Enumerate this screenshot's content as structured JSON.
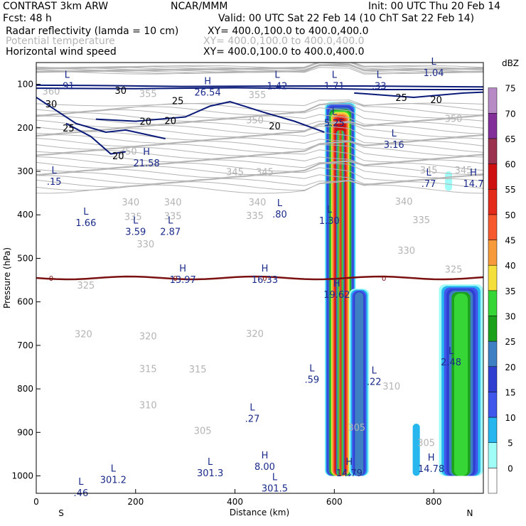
{
  "header": {
    "model": "CONTRAST  3km ARW",
    "center": "NCAR/MMM",
    "init": "Init: 00 UTC Thu 20 Feb 14",
    "fcst": "Fcst:    48 h",
    "valid": "Valid: 00 UTC Sat 22 Feb 14 (10 ChT Sat 22 Feb 14)",
    "fields": [
      {
        "name": "Radar reflectivity (lamda = 10 cm)",
        "xy": "XY= 400.0,100.0 to 400.0,400.0",
        "gray": false
      },
      {
        "name": "Potential temperature",
        "xy": "XY= 400.0,100.0 to 400.0,400.0",
        "gray": true
      },
      {
        "name": "Horizontal wind speed",
        "xy": "XY= 400.0,100.0 to 400.0,400.0",
        "gray": false
      }
    ]
  },
  "colors": {
    "wind": "#0a1a78",
    "theta": "#b4b4b4",
    "freezing": "#7a1010",
    "hl_label": "#1a2a8a"
  },
  "chart_data": {
    "type": "heatmap",
    "title": "Vertical cross-section: radar reflectivity, potential temperature, horizontal wind speed",
    "xlabel": "Distance (km)",
    "ylabel": "Pressure (hPa)",
    "xlim": [
      0,
      900
    ],
    "ylim": [
      1040,
      50
    ],
    "xticks": [
      0,
      200,
      400,
      600,
      800
    ],
    "yticks": [
      100,
      200,
      300,
      400,
      500,
      600,
      700,
      800,
      900,
      1000
    ],
    "end_labels": {
      "left": "S",
      "right": "N"
    },
    "colorbar": {
      "unit": "dBZ",
      "levels": [
        0,
        5,
        10,
        15,
        20,
        25,
        30,
        35,
        40,
        45,
        50,
        55,
        60,
        65,
        70,
        75
      ],
      "colors": [
        "#ffffff",
        "#9ffcf6",
        "#27b7ee",
        "#3f57ea",
        "#2f3fd0",
        "#3f7fc4",
        "#1ca11c",
        "#37d637",
        "#f4df3c",
        "#f69a3a",
        "#f5592d",
        "#e42a1b",
        "#cf1010",
        "#9b3350",
        "#822f9a",
        "#b789c5"
      ]
    },
    "reflectivity_cells": [
      {
        "name": "main-convective-core",
        "x_center": 612,
        "p_top": 140,
        "p_base": 1000,
        "max_dbz": 60
      },
      {
        "name": "cell-650km",
        "x_center": 650,
        "p_top": 570,
        "p_base": 1000,
        "max_dbz": 25
      },
      {
        "name": "cell-850km",
        "x_center": 855,
        "p_top": 560,
        "p_base": 1000,
        "max_dbz": 35
      },
      {
        "name": "echo-765km",
        "x_center": 765,
        "p_top": 880,
        "p_base": 1000,
        "max_dbz": 10
      },
      {
        "name": "echo-830km",
        "x_center": 830,
        "p_top": 300,
        "p_base": 345,
        "max_dbz": 5
      }
    ],
    "potential_temperature_labels": [
      {
        "x": 30,
        "p": 117,
        "v": "360"
      },
      {
        "x": 225,
        "p": 123,
        "v": "355"
      },
      {
        "x": 445,
        "p": 125,
        "v": "355"
      },
      {
        "x": 440,
        "p": 183,
        "v": "350"
      },
      {
        "x": 840,
        "p": 180,
        "v": "350"
      },
      {
        "x": 400,
        "p": 302,
        "v": "345"
      },
      {
        "x": 460,
        "p": 302,
        "v": "345"
      },
      {
        "x": 790,
        "p": 298,
        "v": "345"
      },
      {
        "x": 860,
        "p": 298,
        "v": "345"
      },
      {
        "x": 185,
        "p": 255,
        "v": "350"
      },
      {
        "x": 190,
        "p": 372,
        "v": "340"
      },
      {
        "x": 275,
        "p": 372,
        "v": "340"
      },
      {
        "x": 445,
        "p": 372,
        "v": "340"
      },
      {
        "x": 740,
        "p": 370,
        "v": "340"
      },
      {
        "x": 195,
        "p": 405,
        "v": "335"
      },
      {
        "x": 275,
        "p": 404,
        "v": "335"
      },
      {
        "x": 440,
        "p": 403,
        "v": "335"
      },
      {
        "x": 775,
        "p": 413,
        "v": "335"
      },
      {
        "x": 220,
        "p": 468,
        "v": "330"
      },
      {
        "x": 745,
        "p": 483,
        "v": "330"
      },
      {
        "x": 100,
        "p": 563,
        "v": "325"
      },
      {
        "x": 840,
        "p": 526,
        "v": "325"
      },
      {
        "x": 95,
        "p": 675,
        "v": "320"
      },
      {
        "x": 225,
        "p": 680,
        "v": "320"
      },
      {
        "x": 440,
        "p": 674,
        "v": "320"
      },
      {
        "x": 225,
        "p": 755,
        "v": "315"
      },
      {
        "x": 325,
        "p": 756,
        "v": "315"
      },
      {
        "x": 715,
        "p": 795,
        "v": "310"
      },
      {
        "x": 225,
        "p": 838,
        "v": "310"
      },
      {
        "x": 335,
        "p": 897,
        "v": "305"
      },
      {
        "x": 645,
        "p": 890,
        "v": "305"
      },
      {
        "x": 785,
        "p": 925,
        "v": "305"
      }
    ],
    "wind_speed_labels": [
      {
        "x": 170,
        "p": 114,
        "v": "30"
      },
      {
        "x": 30,
        "p": 145,
        "v": "30"
      },
      {
        "x": 285,
        "p": 137,
        "v": "25"
      },
      {
        "x": 735,
        "p": 130,
        "v": "25"
      },
      {
        "x": 805,
        "p": 135,
        "v": "20"
      },
      {
        "x": 65,
        "p": 200,
        "v": "25"
      },
      {
        "x": 220,
        "p": 185,
        "v": "20"
      },
      {
        "x": 270,
        "p": 183,
        "v": "20"
      },
      {
        "x": 480,
        "p": 195,
        "v": "20"
      },
      {
        "x": 165,
        "p": 264,
        "v": "20"
      }
    ],
    "freezing_level": {
      "label": "0",
      "p": 545
    },
    "extrema": [
      {
        "t": "L",
        "x": 62,
        "p": 85,
        "v": ".91"
      },
      {
        "t": "H",
        "x": 345,
        "p": 100,
        "v": "26.54"
      },
      {
        "t": "L",
        "x": 485,
        "p": 85,
        "v": "1.42"
      },
      {
        "t": "L",
        "x": 600,
        "p": 85,
        "v": "1.71"
      },
      {
        "t": "L",
        "x": 690,
        "p": 85,
        "v": ".33"
      },
      {
        "t": "L",
        "x": 800,
        "p": 55,
        "v": "1.04"
      },
      {
        "t": "L",
        "x": 600,
        "p": 170,
        "v": "5.25"
      },
      {
        "t": "L",
        "x": 720,
        "p": 220,
        "v": "3.16"
      },
      {
        "t": "H",
        "x": 222,
        "p": 262,
        "v": "21.58"
      },
      {
        "t": "L",
        "x": 36,
        "p": 305,
        "v": ".15"
      },
      {
        "t": "L",
        "x": 790,
        "p": 310,
        "v": ".77"
      },
      {
        "t": "H",
        "x": 880,
        "p": 310,
        "v": "14.7"
      },
      {
        "t": "L",
        "x": 490,
        "p": 380,
        "v": ".80"
      },
      {
        "t": "L",
        "x": 100,
        "p": 400,
        "v": "1.66"
      },
      {
        "t": "L",
        "x": 590,
        "p": 395,
        "v": "1.30"
      },
      {
        "t": "L",
        "x": 200,
        "p": 420,
        "v": "3.59"
      },
      {
        "t": "L",
        "x": 270,
        "p": 420,
        "v": "2.87"
      },
      {
        "t": "H",
        "x": 295,
        "p": 530,
        "v": "13.97"
      },
      {
        "t": "H",
        "x": 460,
        "p": 530,
        "v": "16.33"
      },
      {
        "t": "H",
        "x": 605,
        "p": 565,
        "v": "19.62"
      },
      {
        "t": "L",
        "x": 835,
        "p": 720,
        "v": "2.48"
      },
      {
        "t": "L",
        "x": 555,
        "p": 760,
        "v": ".59"
      },
      {
        "t": "L",
        "x": 680,
        "p": 765,
        "v": ".22"
      },
      {
        "t": "L",
        "x": 435,
        "p": 850,
        "v": ".27"
      },
      {
        "t": "H",
        "x": 460,
        "p": 960,
        "v": "8.00"
      },
      {
        "t": "L",
        "x": 350,
        "p": 975,
        "v": "301.3"
      },
      {
        "t": "H",
        "x": 630,
        "p": 975,
        "v": "14.79"
      },
      {
        "t": "H",
        "x": 795,
        "p": 965,
        "v": "14.78"
      },
      {
        "t": "L",
        "x": 155,
        "p": 990,
        "v": "301.2"
      },
      {
        "t": "L",
        "x": 480,
        "p": 1010,
        "v": "301.5"
      },
      {
        "t": "L",
        "x": 90,
        "p": 1020,
        "v": ".46"
      }
    ]
  }
}
